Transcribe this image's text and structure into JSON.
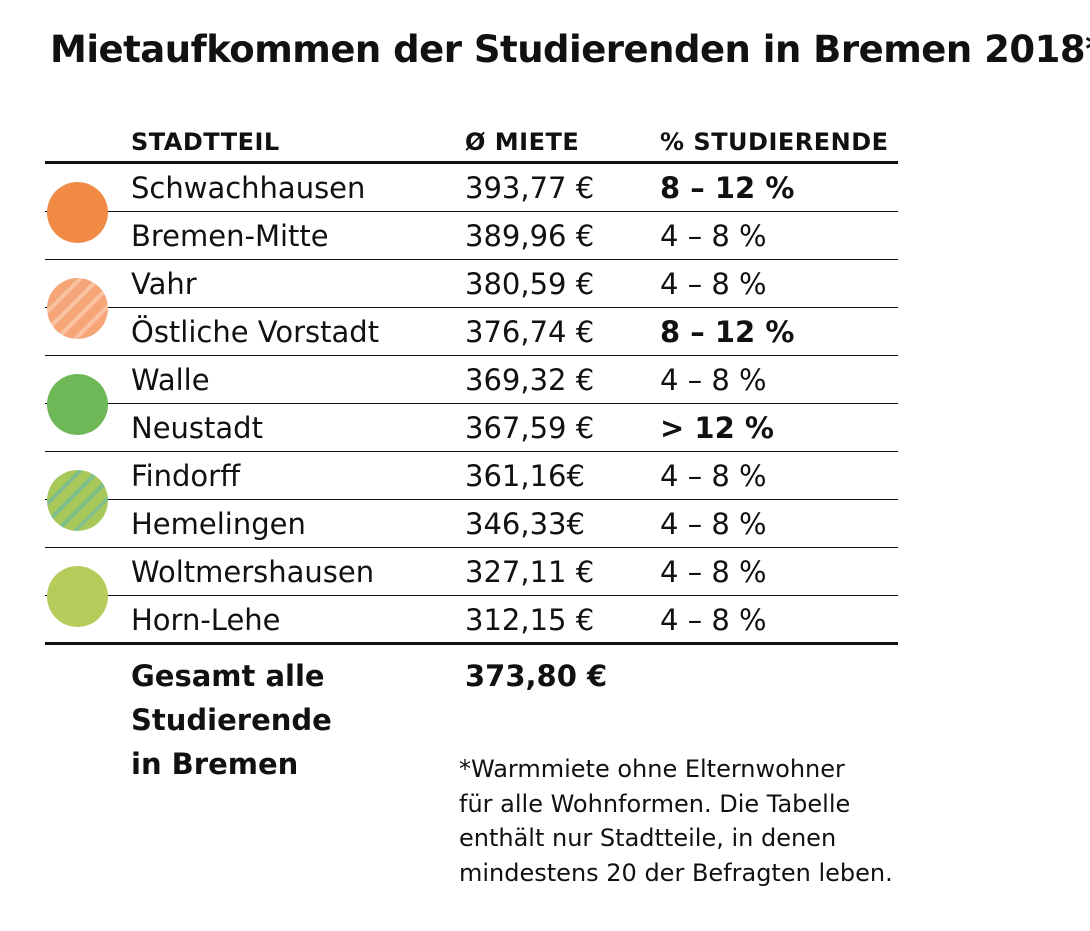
{
  "title": "Mietaufkommen der Studierenden in Bremen 2018*",
  "columns": {
    "district": "STADTTEIL",
    "rent": "Ø MIETE",
    "share": "% STUDIERENDE"
  },
  "chart_data": {
    "type": "table",
    "title": "Mietaufkommen der Studierenden in Bremen 2018*",
    "columns": [
      "STADTTEIL",
      "Ø MIETE",
      "% STUDIERENDE"
    ],
    "rows": [
      {
        "district": "Schwachhausen",
        "rent": 393.77,
        "rent_label": "393,77 €",
        "share": "8 – 12 %",
        "highlight": true
      },
      {
        "district": "Bremen-Mitte",
        "rent": 389.96,
        "rent_label": "389,96 €",
        "share": "4 – 8 %",
        "highlight": false
      },
      {
        "district": "Vahr",
        "rent": 380.59,
        "rent_label": "380,59 €",
        "share": "4 – 8 %",
        "highlight": false
      },
      {
        "district": "Östliche Vorstadt",
        "rent": 376.74,
        "rent_label": "376,74 €",
        "share": "8 – 12 %",
        "highlight": true
      },
      {
        "district": "Walle",
        "rent": 369.32,
        "rent_label": "369,32 €",
        "share": "4 – 8 %",
        "highlight": false
      },
      {
        "district": "Neustadt",
        "rent": 367.59,
        "rent_label": "367,59 €",
        "share": "> 12 %",
        "highlight": true
      },
      {
        "district": "Findorff",
        "rent": 361.16,
        "rent_label": "361,16€",
        "share": "4 – 8 %",
        "highlight": false
      },
      {
        "district": "Hemelingen",
        "rent": 346.33,
        "rent_label": "346,33€",
        "share": "4 – 8 %",
        "highlight": false
      },
      {
        "district": "Woltmershausen",
        "rent": 327.11,
        "rent_label": "327,11 €",
        "share": "4 – 8 %",
        "highlight": false
      },
      {
        "district": "Horn-Lehe",
        "rent": 312.15,
        "rent_label": "312,15 €",
        "share": "4 – 8 %",
        "highlight": false
      }
    ],
    "groups": [
      {
        "rows": [
          0,
          1
        ],
        "color": "#f08a45",
        "pattern": "solid"
      },
      {
        "rows": [
          2,
          3
        ],
        "color": "#f5a577",
        "stripe_color": "#f9c3a2",
        "pattern": "striped"
      },
      {
        "rows": [
          4,
          5
        ],
        "color": "#6fb857",
        "pattern": "solid"
      },
      {
        "rows": [
          6,
          7
        ],
        "color": "#a8c85a",
        "stripe_color": "#7fc08a",
        "pattern": "striped"
      },
      {
        "rows": [
          8,
          9
        ],
        "color": "#b5cc5a",
        "pattern": "solid"
      }
    ],
    "total": {
      "label_lines": [
        "Gesamt alle",
        "Studierende",
        "in Bremen"
      ],
      "rent": 373.8,
      "rent_label": "373,80 €"
    }
  },
  "footnote": [
    "*Warmmiete ohne Elternwohner",
    "für alle Wohnformen. Die Tabelle",
    "enthält nur Stadtteile, in denen",
    "mindestens 20 der Befragten leben."
  ]
}
